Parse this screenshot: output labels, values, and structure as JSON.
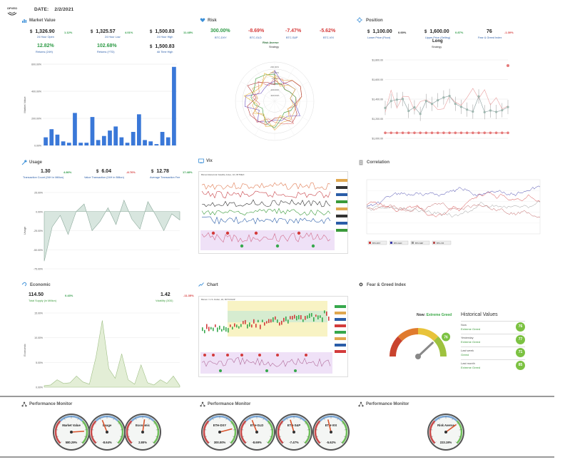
{
  "header": {
    "logo_text": "OPVEO",
    "date_label": "DATE:",
    "date_value": "2/2/2021"
  },
  "market_value": {
    "title": "Market Value",
    "stats": [
      {
        "currency": "$",
        "value": "1,326.90",
        "pct": "1.12%",
        "label": "24 Hour Open"
      },
      {
        "currency": "$",
        "value": "1,325.57",
        "pct": "4.01%",
        "label": "24 Hour Low"
      },
      {
        "currency": "$",
        "value": "1,500.83",
        "pct": "11.48%",
        "label": "24 Hour High"
      }
    ],
    "stats2": [
      {
        "value": "12.82%",
        "label": "Returns (24H)"
      },
      {
        "value": "102.68%",
        "label": "Returns (YTD)"
      },
      {
        "currency": "$",
        "value": "1,500.83",
        "label": "All Time High"
      }
    ],
    "chart_data": {
      "type": "bar",
      "ylabel": "Market Value",
      "yticks": [
        "600.00%",
        "400.00%",
        "200.00%",
        "0.00%"
      ],
      "ylim": [
        0,
        600
      ],
      "values": [
        60,
        120,
        80,
        30,
        20,
        240,
        20,
        20,
        210,
        40,
        70,
        110,
        140,
        60,
        20,
        100,
        230,
        40,
        30,
        10,
        100,
        60,
        580
      ],
      "color": "#3a78d8"
    }
  },
  "risk": {
    "title": "Risk",
    "stats": [
      {
        "value": "300.00%",
        "label": "BTC-DXY",
        "sign": "pos"
      },
      {
        "value": "-8.69%",
        "label": "BTC-GLD",
        "sign": "neg"
      },
      {
        "value": "-7.47%",
        "label": "BTC-S&P",
        "sign": "neg"
      },
      {
        "value": "-5.62%",
        "label": "BTC-VIX",
        "sign": "neg"
      }
    ],
    "center_value": "Risk Averse",
    "center_label": "Strategy",
    "radar_ticks": [
      "200.00%",
      "100.00%",
      "0.00%",
      "-100.00%",
      "-200.00%",
      "-300.00%"
    ]
  },
  "position": {
    "title": "Position",
    "stats": [
      {
        "currency": "$",
        "value": "1,100.00",
        "pct": "0.00%",
        "label": "Lower Price (Floor)"
      },
      {
        "currency": "$",
        "value": "1,600.00",
        "pct": "0.87%",
        "label": "Upper Price (Selling)"
      },
      {
        "value": "76",
        "pct": "-1.30%",
        "label": "Fear & Greed Index"
      }
    ],
    "strategy_value": "Long",
    "strategy_label": "Strategy",
    "yticks": [
      "$1,800.00",
      "$1,600.00",
      "$1,400.00",
      "$1,200.00",
      "$1,000.00"
    ]
  },
  "usage": {
    "title": "Usage",
    "stats": [
      {
        "value": "1.30",
        "pct": "4.86%",
        "label": "Transaction Count (24H in Million)",
        "sign": "pos"
      },
      {
        "currency": "$",
        "value": "6.04",
        "pct": "-8.76%",
        "label": "Value Transaction (24H in Billion)",
        "sign": "neg"
      },
      {
        "currency": "$",
        "value": "12.78",
        "pct": "17.48%",
        "label": "Average Transaction Fee",
        "sign": "pos"
      }
    ],
    "ylabel": "Usage",
    "yticks": [
      "25.00%",
      "0.00%",
      "-25.00%",
      "-50.00%",
      "-75.00%"
    ]
  },
  "vix": {
    "title": "Vix",
    "chart_caption": "Bitcoin/Historical Volatility Index, 1D, BITMEX"
  },
  "correlation": {
    "title": "Correlation",
    "legend": [
      "BTC-DXY",
      "BTC-GLD",
      "BTC-S&P",
      "BTC-VIX"
    ]
  },
  "economic": {
    "title": "Economic",
    "stats": [
      {
        "value": "114.50",
        "pct": "0.43%",
        "label": "Total Supply (in Million)",
        "sign": "pos"
      },
      {
        "value": "1.42",
        "pct": "-11.35%",
        "label": "Volatility (30D)",
        "sign": "neg"
      }
    ],
    "ylabel": "Economic",
    "yticks": [
      "15.00%",
      "10.00%",
      "5.00%",
      "0.00%"
    ]
  },
  "chart": {
    "title": "Chart",
    "chart_caption": "Bitcoin / U.S. Dollar, 1D, BITSTAMP"
  },
  "fear_greed": {
    "title": "Fear & Greed Index",
    "now_label": "Now:",
    "now_value": "Extreme Greed",
    "gauge_value": "76",
    "gauge_fraction": 0.76,
    "historical_title": "Historical Values",
    "history": [
      {
        "label": "Now",
        "value": "Extreme Greed",
        "num": "76"
      },
      {
        "label": "Yesterday",
        "value": "Extreme Greed",
        "num": "77"
      },
      {
        "label": "Last week",
        "value": "Greed",
        "num": "71"
      },
      {
        "label": "Last month",
        "value": "Extreme Greed",
        "num": "85"
      }
    ]
  },
  "perf1": {
    "title": "Performance Monitor",
    "gauges": [
      {
        "name": "Market Value",
        "value": "580.29%",
        "level": 0.82
      },
      {
        "name": "Usage",
        "value": "-8.64%",
        "level": 0.42
      },
      {
        "name": "Economic",
        "value": "2.80%",
        "level": 0.53
      }
    ]
  },
  "perf2": {
    "title": "Performance Monitor",
    "gauges": [
      {
        "name": "ETH-DXY",
        "value": "300.00%",
        "level": 0.78
      },
      {
        "name": "ETH-GLD",
        "value": "-8.69%",
        "level": 0.42
      },
      {
        "name": "ETH-S&P",
        "value": "-7.47%",
        "level": 0.44
      },
      {
        "name": "ETH-VIX",
        "value": "-5.62%",
        "level": 0.45
      }
    ]
  },
  "perf3": {
    "title": "Performance Monitor",
    "gauges": [
      {
        "name": "Risk Averse",
        "value": "223.19%",
        "level": 0.7
      }
    ]
  },
  "colors": {
    "green": "#2e9b46",
    "red": "#d63b3b",
    "blue": "#3a78d8",
    "label_blue": "#2a5da8"
  }
}
